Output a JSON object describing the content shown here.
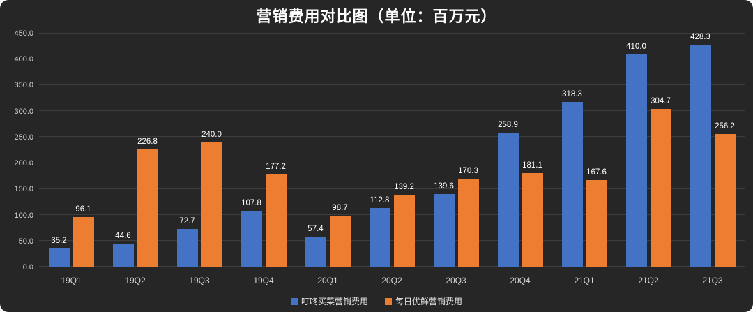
{
  "title": "营销费用对比图（单位：百万元）",
  "colors": {
    "background": "#262626",
    "series_blue": "#4472C4",
    "series_orange": "#ED7D31",
    "grid": "#3d3d3d",
    "axis_text": "#d6d6d6",
    "value_text": "#ffffff"
  },
  "chart_data": {
    "type": "bar",
    "title": "营销费用对比图（单位：百万元）",
    "xlabel": "",
    "ylabel": "",
    "categories": [
      "19Q1",
      "19Q2",
      "19Q3",
      "19Q4",
      "20Q1",
      "20Q2",
      "20Q3",
      "20Q4",
      "21Q1",
      "21Q2",
      "21Q3"
    ],
    "series": [
      {
        "name": "叮咚买菜营销费用",
        "color": "#4472C4",
        "values": [
          35.2,
          44.6,
          72.7,
          107.8,
          57.4,
          112.8,
          139.6,
          258.9,
          318.3,
          410.0,
          428.3
        ]
      },
      {
        "name": "每日优鲜营销费用",
        "color": "#ED7D31",
        "values": [
          96.1,
          226.8,
          240.0,
          177.2,
          98.7,
          139.2,
          170.3,
          181.1,
          167.6,
          304.7,
          256.2
        ]
      }
    ],
    "ylim": [
      0,
      450
    ],
    "yticks": [
      0,
      50,
      100,
      150,
      200,
      250,
      300,
      350,
      400,
      450
    ],
    "grid": true,
    "legend_position": "bottom"
  }
}
